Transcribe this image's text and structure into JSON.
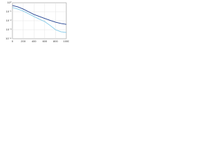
{
  "chart_data": {
    "type": "line",
    "x": [
      0,
      100,
      200,
      300,
      400,
      500,
      600,
      700,
      800,
      900,
      1000
    ],
    "series": [
      {
        "color": "#1f3f8f",
        "values": [
          0.5,
          0.35,
          0.2,
          0.1,
          0.05,
          0.03,
          0.018,
          0.011,
          0.007,
          0.005,
          0.004
        ]
      },
      {
        "color": "#7fc8e8",
        "values": [
          0.3,
          0.2,
          0.12,
          0.06,
          0.03,
          0.015,
          0.008,
          0.003,
          0.001,
          0.0006,
          0.0005
        ]
      }
    ],
    "xlim": [
      0,
      1000
    ],
    "xticks": [
      0,
      200,
      400,
      600,
      800,
      1000
    ],
    "ylim": [
      0.0001,
      1
    ],
    "log_y": true,
    "yticks": [
      {
        "value": 0.0001,
        "label": "10⁻⁴"
      },
      {
        "value": 0.001,
        "label": "10⁻³"
      },
      {
        "value": 0.01,
        "label": "10⁻²"
      },
      {
        "value": 0.1,
        "label": "10⁻¹"
      },
      {
        "value": 1,
        "label": "10⁰"
      }
    ],
    "grid": true
  }
}
